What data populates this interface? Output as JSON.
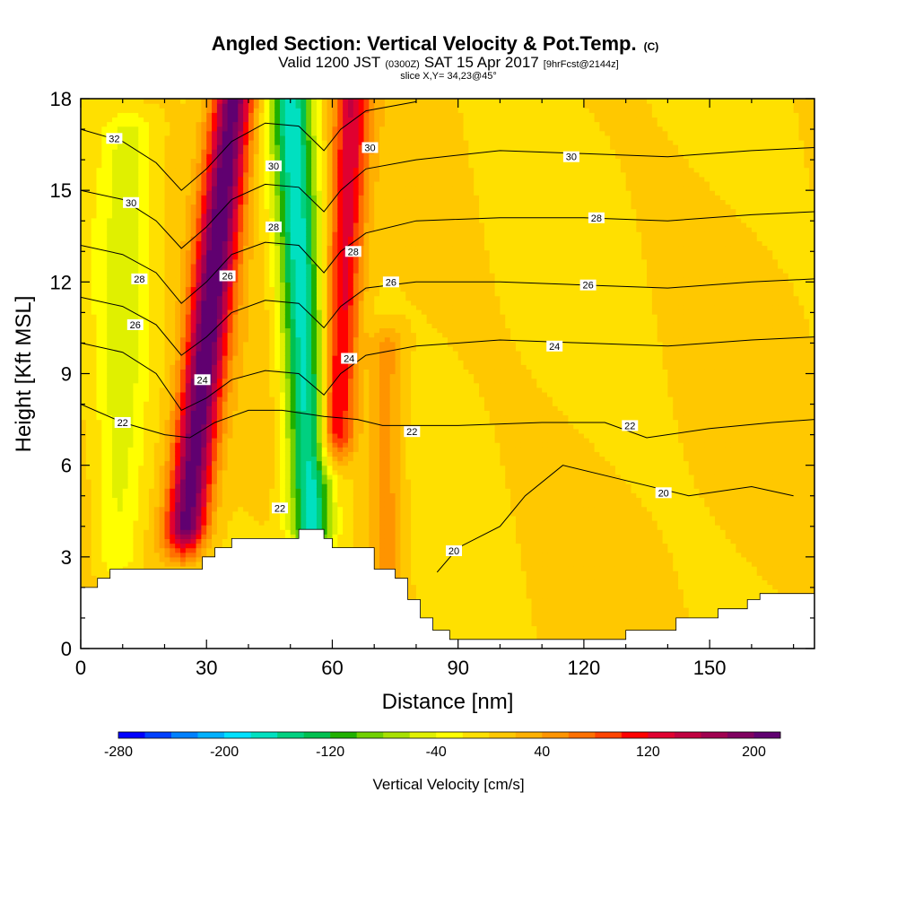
{
  "title": {
    "main": "Angled Section: Vertical Velocity & Pot.Temp.",
    "main_suffix": "(C)",
    "line2_a": "Valid 1200 JST",
    "line2_b": "(0300Z)",
    "line2_c": "SAT 15 Apr 2017",
    "line2_d": "[9hrFcst@2144z]",
    "line3": "slice X,Y= 34,23@45°"
  },
  "chart_data": {
    "type": "heatmap",
    "xlabel": "Distance [nm]",
    "ylabel": "Height [Kft MSL]",
    "xlim": [
      0,
      175
    ],
    "ylim": [
      0,
      18
    ],
    "x_ticks": [
      0,
      30,
      60,
      90,
      120,
      150
    ],
    "y_ticks": [
      0,
      3,
      6,
      9,
      12,
      15,
      18
    ],
    "colorbar": {
      "label": "Vertical Velocity [cm/s]",
      "min": -280,
      "max": 220,
      "step": 20,
      "tick_values": [
        -280,
        -200,
        -120,
        -40,
        40,
        120,
        200
      ],
      "colors": [
        "#0000ff",
        "#0040ff",
        "#0080ff",
        "#00b0ff",
        "#00e0ff",
        "#00e0c0",
        "#00d080",
        "#00c050",
        "#20b000",
        "#70d000",
        "#a8e000",
        "#e0f000",
        "#ffff00",
        "#ffe000",
        "#ffc800",
        "#ffb000",
        "#ff9400",
        "#ff7000",
        "#ff4400",
        "#ff0000",
        "#e00030",
        "#c00040",
        "#a00050",
        "#800060",
        "#600070"
      ]
    },
    "velocity_features": [
      {
        "kind": "updraft",
        "x_center": 30,
        "x_shift_per_kft": 0.8,
        "width_nm": 3.5,
        "peak_cm_s": 215,
        "z_bottom": 4,
        "z_top": 18
      },
      {
        "kind": "downdraft",
        "x_center": 53,
        "x_shift_per_kft": -0.35,
        "width_nm": 3.5,
        "peak_cm_s": -175,
        "z_bottom": 4,
        "z_top": 18
      },
      {
        "kind": "updraft",
        "x_center": 62,
        "x_shift_per_kft": 0.35,
        "width_nm": 3.0,
        "peak_cm_s": 130,
        "z_bottom": 7,
        "z_top": 18
      },
      {
        "kind": "downdraft",
        "x_center": 10,
        "x_shift_per_kft": 0.2,
        "width_nm": 4.0,
        "peak_cm_s": -50,
        "z_bottom": 3,
        "z_top": 17
      },
      {
        "kind": "updraft",
        "x_center": 73,
        "x_shift_per_kft": 0.0,
        "width_nm": 3.0,
        "peak_cm_s": 55,
        "z_bottom": 2,
        "z_top": 10
      }
    ],
    "isentropes": [
      {
        "value": 20,
        "label": "20",
        "points": [
          [
            85,
            2.5
          ],
          [
            90,
            3.3
          ],
          [
            100,
            4.0
          ],
          [
            106,
            5.0
          ],
          [
            115,
            6.0
          ],
          [
            130,
            5.5
          ],
          [
            145,
            5.0
          ],
          [
            160,
            5.3
          ],
          [
            170,
            5.0
          ]
        ]
      },
      {
        "value": 22,
        "label": "22",
        "points": [
          [
            0,
            8.0
          ],
          [
            10,
            7.4
          ],
          [
            20,
            7.0
          ],
          [
            26,
            6.9
          ],
          [
            32,
            7.4
          ],
          [
            40,
            7.8
          ],
          [
            48,
            7.8
          ],
          [
            58,
            7.6
          ],
          [
            66,
            7.5
          ],
          [
            72,
            7.3
          ],
          [
            90,
            7.3
          ],
          [
            110,
            7.4
          ],
          [
            125,
            7.4
          ],
          [
            135,
            6.9
          ],
          [
            150,
            7.2
          ],
          [
            165,
            7.4
          ],
          [
            175,
            7.5
          ]
        ]
      },
      {
        "value": 24,
        "label": "24",
        "points": [
          [
            0,
            10.0
          ],
          [
            10,
            9.7
          ],
          [
            18,
            9.0
          ],
          [
            24,
            7.8
          ],
          [
            30,
            8.2
          ],
          [
            36,
            8.8
          ],
          [
            44,
            9.1
          ],
          [
            52,
            9.0
          ],
          [
            58,
            8.3
          ],
          [
            62,
            9.0
          ],
          [
            68,
            9.6
          ],
          [
            80,
            9.9
          ],
          [
            100,
            10.1
          ],
          [
            120,
            10.0
          ],
          [
            140,
            9.9
          ],
          [
            160,
            10.1
          ],
          [
            175,
            10.2
          ]
        ]
      },
      {
        "value": 26,
        "label": "26",
        "points": [
          [
            0,
            11.5
          ],
          [
            10,
            11.2
          ],
          [
            18,
            10.6
          ],
          [
            24,
            9.6
          ],
          [
            30,
            10.2
          ],
          [
            36,
            11.0
          ],
          [
            44,
            11.4
          ],
          [
            52,
            11.3
          ],
          [
            58,
            10.5
          ],
          [
            62,
            11.2
          ],
          [
            68,
            11.8
          ],
          [
            80,
            12.0
          ],
          [
            100,
            12.0
          ],
          [
            120,
            11.9
          ],
          [
            140,
            11.8
          ],
          [
            160,
            12.0
          ],
          [
            175,
            12.1
          ]
        ]
      },
      {
        "value": 28,
        "label": "28",
        "points": [
          [
            0,
            13.2
          ],
          [
            10,
            12.9
          ],
          [
            18,
            12.3
          ],
          [
            24,
            11.3
          ],
          [
            30,
            12.0
          ],
          [
            36,
            12.9
          ],
          [
            44,
            13.3
          ],
          [
            52,
            13.2
          ],
          [
            58,
            12.3
          ],
          [
            62,
            13.0
          ],
          [
            68,
            13.6
          ],
          [
            80,
            14.0
          ],
          [
            100,
            14.1
          ],
          [
            120,
            14.1
          ],
          [
            140,
            14.0
          ],
          [
            160,
            14.2
          ],
          [
            175,
            14.3
          ]
        ]
      },
      {
        "value": 30,
        "label": "30",
        "points": [
          [
            0,
            15.0
          ],
          [
            10,
            14.7
          ],
          [
            18,
            14.0
          ],
          [
            24,
            13.1
          ],
          [
            30,
            13.8
          ],
          [
            36,
            14.7
          ],
          [
            44,
            15.2
          ],
          [
            52,
            15.1
          ],
          [
            58,
            14.3
          ],
          [
            62,
            15.0
          ],
          [
            68,
            15.7
          ],
          [
            80,
            16.0
          ],
          [
            100,
            16.3
          ],
          [
            120,
            16.2
          ],
          [
            140,
            16.1
          ],
          [
            160,
            16.3
          ],
          [
            175,
            16.4
          ]
        ]
      },
      {
        "value": 32,
        "label": "32",
        "points": [
          [
            0,
            17.0
          ],
          [
            10,
            16.6
          ],
          [
            18,
            15.9
          ],
          [
            24,
            15.0
          ],
          [
            30,
            15.7
          ],
          [
            36,
            16.6
          ],
          [
            44,
            17.2
          ],
          [
            52,
            17.1
          ],
          [
            58,
            16.3
          ],
          [
            62,
            17.0
          ],
          [
            68,
            17.6
          ],
          [
            80,
            17.9
          ]
        ]
      }
    ],
    "contour_labels": [
      {
        "text": "32",
        "x": 8,
        "y": 16.7
      },
      {
        "text": "30",
        "x": 12,
        "y": 14.6
      },
      {
        "text": "28",
        "x": 14,
        "y": 12.1
      },
      {
        "text": "26",
        "x": 13,
        "y": 10.6
      },
      {
        "text": "24",
        "x": 29,
        "y": 8.8
      },
      {
        "text": "22",
        "x": 10,
        "y": 7.4
      },
      {
        "text": "26",
        "x": 35,
        "y": 12.2
      },
      {
        "text": "28",
        "x": 46,
        "y": 13.8
      },
      {
        "text": "30",
        "x": 46,
        "y": 15.8
      },
      {
        "text": "28",
        "x": 65,
        "y": 13.0
      },
      {
        "text": "30",
        "x": 69,
        "y": 16.4
      },
      {
        "text": "24",
        "x": 64,
        "y": 9.5
      },
      {
        "text": "22",
        "x": 47.5,
        "y": 4.6
      },
      {
        "text": "26",
        "x": 74,
        "y": 12.0
      },
      {
        "text": "22",
        "x": 79,
        "y": 7.1
      },
      {
        "text": "20",
        "x": 89,
        "y": 3.2
      },
      {
        "text": "30",
        "x": 117,
        "y": 16.1
      },
      {
        "text": "28",
        "x": 123,
        "y": 14.1
      },
      {
        "text": "26",
        "x": 121,
        "y": 11.9
      },
      {
        "text": "24",
        "x": 113,
        "y": 9.9
      },
      {
        "text": "22",
        "x": 131,
        "y": 7.3
      },
      {
        "text": "20",
        "x": 139,
        "y": 5.1
      }
    ],
    "terrain": [
      [
        0,
        2.0
      ],
      [
        4,
        2.0
      ],
      [
        4,
        2.3
      ],
      [
        7,
        2.3
      ],
      [
        7,
        2.6
      ],
      [
        29,
        2.6
      ],
      [
        29,
        3.0
      ],
      [
        32,
        3.0
      ],
      [
        32,
        3.3
      ],
      [
        36,
        3.3
      ],
      [
        36,
        3.6
      ],
      [
        52,
        3.6
      ],
      [
        52,
        3.9
      ],
      [
        58,
        3.9
      ],
      [
        58,
        3.6
      ],
      [
        60,
        3.6
      ],
      [
        60,
        3.3
      ],
      [
        70,
        3.3
      ],
      [
        70,
        2.6
      ],
      [
        75,
        2.6
      ],
      [
        75,
        2.3
      ],
      [
        78,
        2.3
      ],
      [
        78,
        1.6
      ],
      [
        81,
        1.6
      ],
      [
        81,
        1.0
      ],
      [
        84,
        1.0
      ],
      [
        84,
        0.6
      ],
      [
        88,
        0.6
      ],
      [
        88,
        0.3
      ],
      [
        130,
        0.3
      ],
      [
        130,
        0.6
      ],
      [
        142,
        0.6
      ],
      [
        142,
        1.0
      ],
      [
        152,
        1.0
      ],
      [
        152,
        1.3
      ],
      [
        159,
        1.3
      ],
      [
        159,
        1.6
      ],
      [
        160,
        1.6
      ],
      [
        162,
        1.6
      ],
      [
        162,
        1.8
      ],
      [
        175,
        1.8
      ]
    ]
  }
}
